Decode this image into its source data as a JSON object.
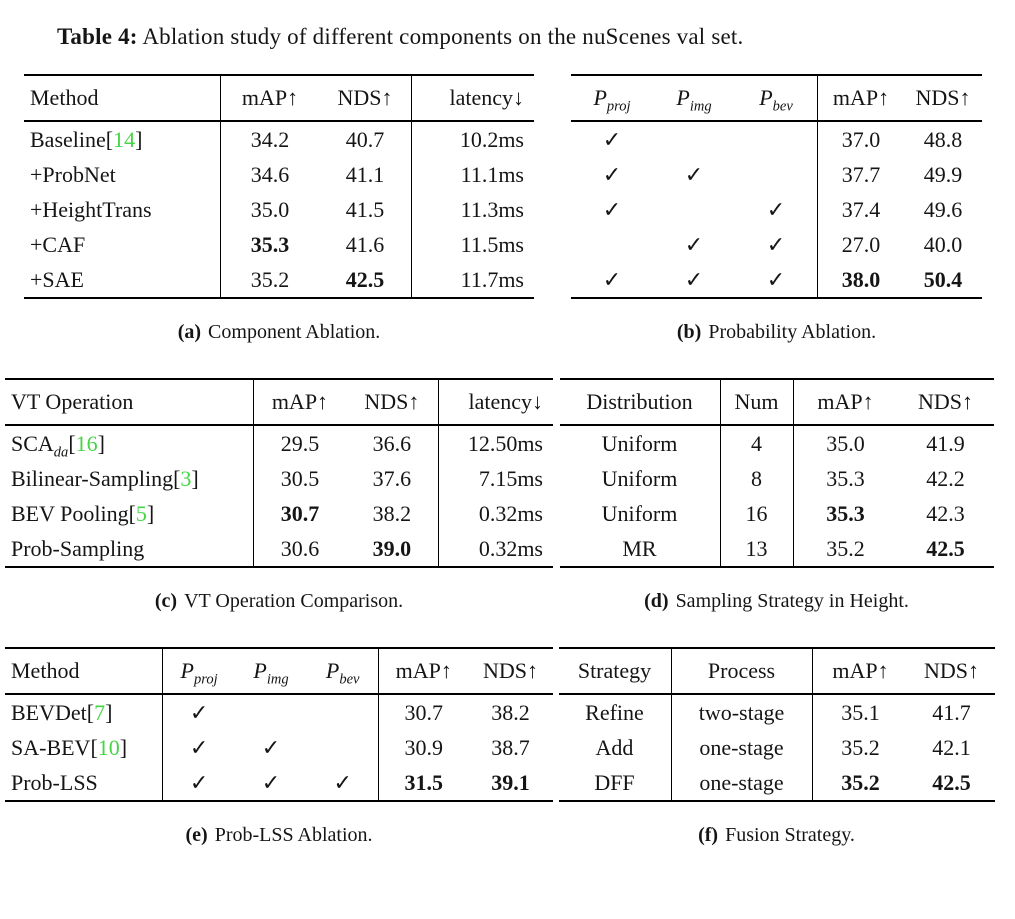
{
  "title": {
    "bold": "Table 4:",
    "rest": " Ablation study of different components on the nuScenes val set."
  },
  "punct": {
    "open": "[",
    "close": "]"
  },
  "colors": {
    "citation": "#44d544"
  },
  "table_a": {
    "headers": {
      "method": "Method",
      "map": "mAP↑",
      "nds": "NDS↑",
      "latency": "latency↓"
    },
    "rows": [
      {
        "method": "Baseline",
        "cite": "14",
        "map": "34.2",
        "nds": "40.7",
        "latency": "10.2ms"
      },
      {
        "method": "+ProbNet",
        "map": "34.6",
        "nds": "41.1",
        "latency": "11.1ms"
      },
      {
        "method": "+HeightTrans",
        "map": "35.0",
        "nds": "41.5",
        "latency": "11.3ms"
      },
      {
        "method": "+CAF",
        "map": "35.3",
        "nds": "41.6",
        "latency": "11.5ms"
      },
      {
        "method": "+SAE",
        "map": "35.2",
        "nds": "42.5",
        "latency": "11.7ms"
      }
    ],
    "caption_label": "(a)",
    "caption": "Component Ablation."
  },
  "table_b": {
    "headers": {
      "p_proj": {
        "base": "P",
        "sub": "proj"
      },
      "p_img": {
        "base": "P",
        "sub": "img"
      },
      "p_bev": {
        "base": "P",
        "sub": "bev"
      },
      "map": "mAP↑",
      "nds": "NDS↑"
    },
    "rows": [
      {
        "proj": "✓",
        "img": "",
        "bev": "",
        "map": "37.0",
        "nds": "48.8"
      },
      {
        "proj": "✓",
        "img": "✓",
        "bev": "",
        "map": "37.7",
        "nds": "49.9"
      },
      {
        "proj": "✓",
        "img": "",
        "bev": "✓",
        "map": "37.4",
        "nds": "49.6"
      },
      {
        "proj": "",
        "img": "✓",
        "bev": "✓",
        "map": "27.0",
        "nds": "40.0"
      },
      {
        "proj": "✓",
        "img": "✓",
        "bev": "✓",
        "map": "38.0",
        "nds": "50.4"
      }
    ],
    "caption_label": "(b)",
    "caption": "Probability Ablation."
  },
  "table_c": {
    "headers": {
      "op": "VT Operation",
      "map": "mAP↑",
      "nds": "NDS↑",
      "latency": "latency↓"
    },
    "rows": [
      {
        "name": "SCA",
        "name_sub": "da",
        "cite": "16",
        "map": "29.5",
        "nds": "36.6",
        "latency": "12.50ms"
      },
      {
        "name": "Bilinear-Sampling",
        "cite": "3",
        "map": "30.5",
        "nds": "37.6",
        "latency": "7.15ms"
      },
      {
        "name": "BEV Pooling",
        "cite": "5",
        "map": "30.7",
        "nds": "38.2",
        "latency": "0.32ms"
      },
      {
        "name": "Prob-Sampling",
        "map": "30.6",
        "nds": "39.0",
        "latency": "0.32ms"
      }
    ],
    "caption_label": "(c)",
    "caption": "VT Operation Comparison."
  },
  "table_d": {
    "headers": {
      "dist": "Distribution",
      "num": "Num",
      "map": "mAP↑",
      "nds": "NDS↑"
    },
    "rows": [
      {
        "dist": "Uniform",
        "num": "4",
        "map": "35.0",
        "nds": "41.9"
      },
      {
        "dist": "Uniform",
        "num": "8",
        "map": "35.3",
        "nds": "42.2"
      },
      {
        "dist": "Uniform",
        "num": "16",
        "map": "35.3",
        "nds": "42.3"
      },
      {
        "dist": "MR",
        "num": "13",
        "map": "35.2",
        "nds": "42.5"
      }
    ],
    "caption_label": "(d)",
    "caption": "Sampling Strategy in Height."
  },
  "table_e": {
    "headers": {
      "method": "Method",
      "p_proj": {
        "base": "P",
        "sub": "proj"
      },
      "p_img": {
        "base": "P",
        "sub": "img"
      },
      "p_bev": {
        "base": "P",
        "sub": "bev"
      },
      "map": "mAP↑",
      "nds": "NDS↑"
    },
    "rows": [
      {
        "method": "BEVDet",
        "cite": "7",
        "proj": "✓",
        "img": "",
        "bev": "",
        "map": "30.7",
        "nds": "38.2"
      },
      {
        "method": "SA-BEV",
        "cite": "10",
        "proj": "✓",
        "img": "✓",
        "bev": "",
        "map": "30.9",
        "nds": "38.7"
      },
      {
        "method": "Prob-LSS",
        "proj": "✓",
        "img": "✓",
        "bev": "✓",
        "map": "31.5",
        "nds": "39.1"
      }
    ],
    "caption_label": "(e)",
    "caption": "Prob-LSS Ablation."
  },
  "table_f": {
    "headers": {
      "strategy": "Strategy",
      "process": "Process",
      "map": "mAP↑",
      "nds": "NDS↑"
    },
    "rows": [
      {
        "strategy": "Refine",
        "process": "two-stage",
        "map": "35.1",
        "nds": "41.7"
      },
      {
        "strategy": "Add",
        "process": "one-stage",
        "map": "35.2",
        "nds": "42.1"
      },
      {
        "strategy": "DFF",
        "process": "one-stage",
        "map": "35.2",
        "nds": "42.5"
      }
    ],
    "caption_label": "(f)",
    "caption": "Fusion Strategy."
  }
}
